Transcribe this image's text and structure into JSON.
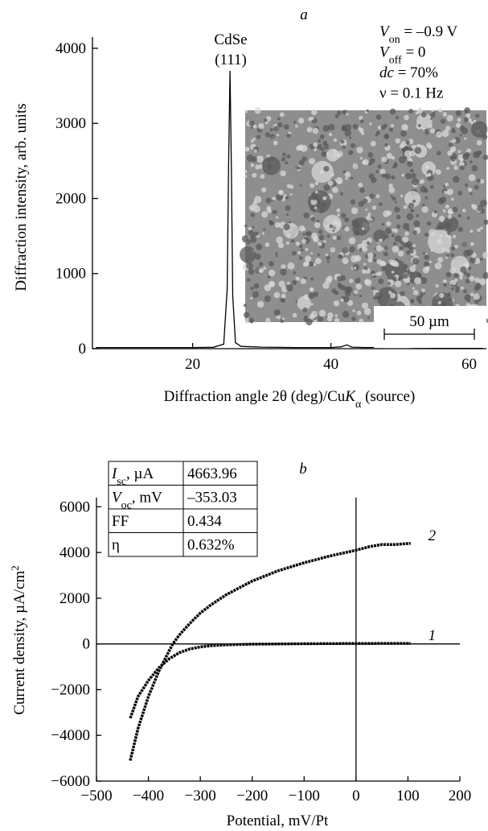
{
  "charts": [
    {
      "panel": "a",
      "type": "line",
      "x_label": [
        {
          "text": "Diffraction angle 2θ (deg)/Cu"
        },
        {
          "text": "K",
          "style": "italic"
        },
        {
          "text": "α",
          "style": "sub"
        },
        {
          "text": " (source)"
        }
      ],
      "y_label": [
        {
          "text": "Diffraction intensity, arb. units"
        }
      ],
      "peak_label": [
        "CdSe",
        "(111)"
      ],
      "conditions": [
        [
          {
            "text": "V",
            "style": "italic"
          },
          {
            "text": "on",
            "style": "sub"
          },
          {
            "text": " = –0.9 V"
          }
        ],
        [
          {
            "text": "V",
            "style": "italic"
          },
          {
            "text": "off",
            "style": "sub"
          },
          {
            "text": " = 0"
          }
        ],
        [
          {
            "text": "dc",
            "style": "italic"
          },
          {
            "text": " = 70%"
          }
        ],
        [
          {
            "text": "ν = 0.1 Hz"
          }
        ]
      ],
      "scale_bar": "50 µm",
      "xlim": [
        5.5,
        62.5
      ],
      "xticks": [
        20,
        40,
        60
      ],
      "ylim": [
        0,
        4150
      ],
      "yticks": [
        0,
        1000,
        2000,
        3000,
        4000
      ],
      "series": [
        {
          "color": "#000000",
          "x": [
            6,
            10,
            15,
            20,
            23,
            24.5,
            25,
            25.2,
            25.4,
            25.6,
            25.8,
            26.2,
            27,
            30,
            35,
            40,
            41.5,
            42.3,
            43,
            45,
            48,
            49.5,
            50,
            50.5,
            52,
            55,
            60,
            62
          ],
          "values": [
            15,
            15,
            15,
            15,
            18,
            60,
            800,
            2500,
            3700,
            2400,
            700,
            80,
            30,
            20,
            15,
            15,
            25,
            50,
            20,
            15,
            18,
            30,
            35,
            20,
            15,
            12,
            10,
            10
          ]
        }
      ]
    },
    {
      "panel": "b",
      "type": "line",
      "x_label": [
        {
          "text": "Potential, mV/Pt"
        }
      ],
      "y_label": [
        {
          "text": "Current density, µA/cm"
        },
        {
          "text": "2",
          "style": "sup"
        }
      ],
      "xlim": [
        -500,
        200
      ],
      "xticks": [
        {
          "value": -500,
          "label": "−500"
        },
        {
          "value": -400,
          "label": "−400"
        },
        {
          "value": -300,
          "label": "−300"
        },
        {
          "value": -200,
          "label": "−200"
        },
        {
          "value": -100,
          "label": "−100"
        },
        0,
        100,
        200
      ],
      "ylim": [
        -6000,
        6400
      ],
      "yticks": [
        {
          "value": -6000,
          "label": "−6000"
        },
        {
          "value": -4000,
          "label": "−4000"
        },
        {
          "value": -2000,
          "label": "−2000"
        },
        0,
        2000,
        4000,
        6000
      ],
      "table": [
        {
          "label": [
            {
              "text": "I",
              "style": "italic"
            },
            {
              "text": "sc",
              "style": "sub"
            },
            {
              "text": ", µA"
            }
          ],
          "value": "4663.96"
        },
        {
          "label": [
            {
              "text": "V",
              "style": "italic"
            },
            {
              "text": "oc",
              "style": "sub"
            },
            {
              "text": ", mV"
            }
          ],
          "value": "–353.03"
        },
        {
          "label": [
            {
              "text": "FF"
            }
          ],
          "value": "0.434"
        },
        {
          "label": [
            {
              "text": "η"
            }
          ],
          "value": "0.632%"
        }
      ],
      "series": [
        {
          "name": "1",
          "color": "#000000",
          "x": [
            -435,
            -420,
            -400,
            -380,
            -360,
            -340,
            -320,
            -300,
            -280,
            -250,
            -200,
            -100,
            0,
            105
          ],
          "values": [
            -3250,
            -2300,
            -1600,
            -1050,
            -650,
            -380,
            -220,
            -130,
            -80,
            -40,
            -10,
            10,
            20,
            25
          ]
        },
        {
          "name": "2",
          "color": "#000000",
          "x": [
            -435,
            -420,
            -400,
            -380,
            -360,
            -353,
            -340,
            -320,
            -300,
            -280,
            -250,
            -200,
            -150,
            -100,
            -50,
            0,
            25,
            50,
            75,
            105
          ],
          "values": [
            -5100,
            -3700,
            -2300,
            -1200,
            -300,
            0,
            400,
            900,
            1350,
            1700,
            2150,
            2750,
            3200,
            3550,
            3850,
            4100,
            4250,
            4350,
            4350,
            4400
          ]
        }
      ]
    }
  ]
}
